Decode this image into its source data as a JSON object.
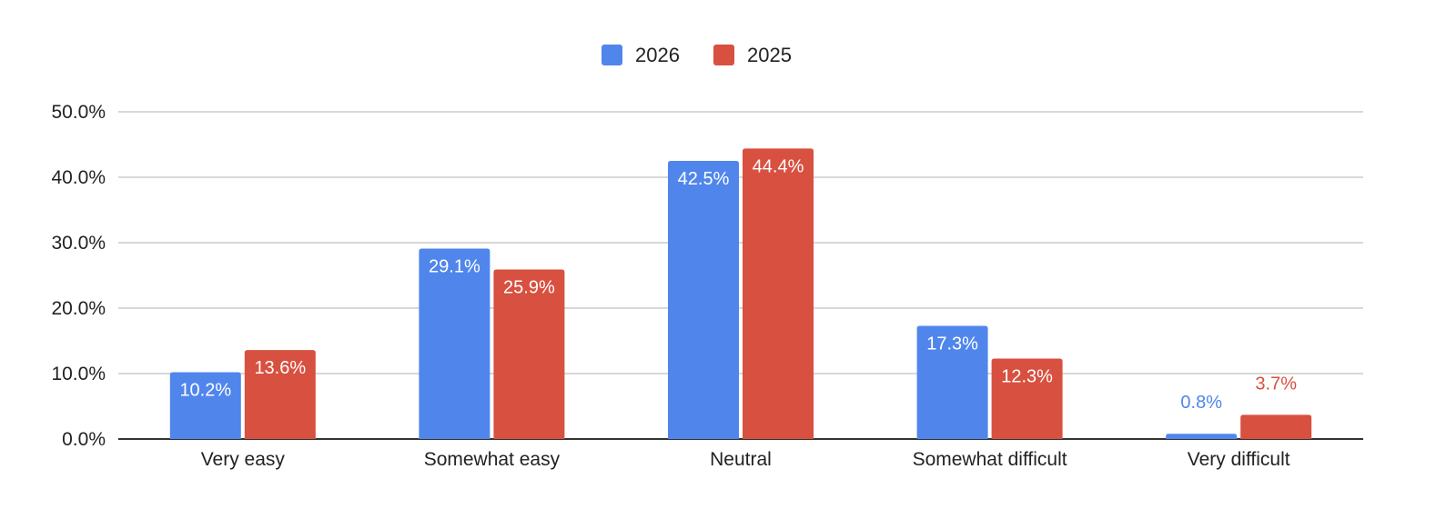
{
  "chart_data": {
    "type": "bar",
    "categories": [
      "Very easy",
      "Somewhat easy",
      "Neutral",
      "Somewhat difficult",
      "Very difficult"
    ],
    "series": [
      {
        "name": "2026",
        "color": "#5086EC",
        "values": [
          10.2,
          29.1,
          42.5,
          17.3,
          0.8
        ],
        "labels": [
          "10.2%",
          "29.1%",
          "42.5%",
          "17.3%",
          "0.8%"
        ]
      },
      {
        "name": "2025",
        "color": "#D85040",
        "values": [
          13.6,
          25.9,
          44.4,
          12.3,
          3.7
        ],
        "labels": [
          "13.6%",
          "25.9%",
          "44.4%",
          "12.3%",
          "3.7%"
        ]
      }
    ],
    "ylim": [
      0,
      50
    ],
    "yticks": [
      0,
      10,
      20,
      30,
      40,
      50
    ],
    "ytick_labels": [
      "0.0%",
      "10.0%",
      "20.0%",
      "30.0%",
      "40.0%",
      "50.0%"
    ],
    "grid": true,
    "legend_position": "top-center",
    "xlabel": "",
    "ylabel": "",
    "title": ""
  }
}
